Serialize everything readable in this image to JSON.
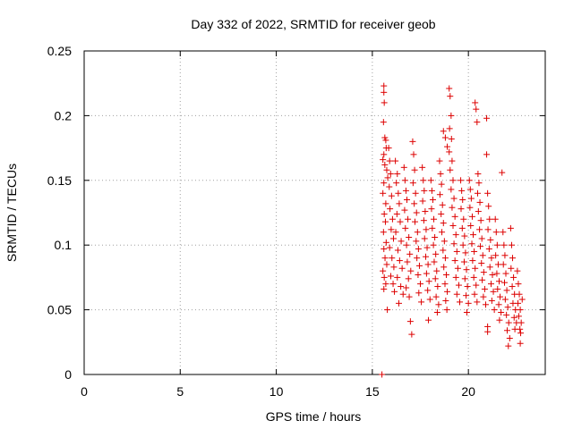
{
  "chart_data": {
    "type": "scatter",
    "title": "Day 332 of 2022, SRMTID for receiver geob",
    "xlabel": "GPS time / hours",
    "ylabel": "SRMTID / TECUs",
    "xlim": [
      0,
      24
    ],
    "ylim": [
      0,
      0.25
    ],
    "xticks": [
      0,
      5,
      10,
      15,
      20
    ],
    "yticks": [
      0,
      0.05,
      0.1,
      0.15,
      0.2,
      0.25
    ],
    "xtick_labels": [
      "0",
      "5",
      "10",
      "15",
      "20"
    ],
    "ytick_labels": [
      "0",
      "0.05",
      "0.1",
      "0.15",
      "0.2",
      "0.25"
    ],
    "grid": true,
    "marker": "+",
    "color": "#dd0000",
    "series": [
      {
        "name": "SRMTID",
        "points": [
          [
            15.5,
            0.0
          ],
          [
            15.6,
            0.223
          ],
          [
            15.6,
            0.218
          ],
          [
            15.62,
            0.21
          ],
          [
            15.58,
            0.195
          ],
          [
            15.65,
            0.183
          ],
          [
            15.7,
            0.181
          ],
          [
            15.72,
            0.175
          ],
          [
            15.6,
            0.17
          ],
          [
            15.55,
            0.166
          ],
          [
            15.65,
            0.162
          ],
          [
            15.75,
            0.158
          ],
          [
            15.8,
            0.152
          ],
          [
            15.6,
            0.148
          ],
          [
            15.55,
            0.14
          ],
          [
            15.7,
            0.132
          ],
          [
            15.62,
            0.124
          ],
          [
            15.68,
            0.118
          ],
          [
            15.58,
            0.11
          ],
          [
            15.72,
            0.102
          ],
          [
            15.6,
            0.097
          ],
          [
            15.66,
            0.09
          ],
          [
            15.75,
            0.085
          ],
          [
            15.55,
            0.08
          ],
          [
            15.62,
            0.075
          ],
          [
            15.7,
            0.07
          ],
          [
            15.6,
            0.066
          ],
          [
            15.78,
            0.05
          ],
          [
            15.85,
            0.175
          ],
          [
            15.9,
            0.165
          ],
          [
            15.95,
            0.155
          ],
          [
            15.88,
            0.145
          ],
          [
            16.0,
            0.138
          ],
          [
            15.92,
            0.128
          ],
          [
            16.05,
            0.12
          ],
          [
            15.98,
            0.112
          ],
          [
            16.1,
            0.105
          ],
          [
            15.9,
            0.098
          ],
          [
            16.02,
            0.09
          ],
          [
            16.12,
            0.083
          ],
          [
            15.96,
            0.076
          ],
          [
            16.08,
            0.07
          ],
          [
            16.15,
            0.064
          ],
          [
            16.2,
            0.165
          ],
          [
            16.3,
            0.155
          ],
          [
            16.25,
            0.148
          ],
          [
            16.35,
            0.14
          ],
          [
            16.4,
            0.132
          ],
          [
            16.28,
            0.124
          ],
          [
            16.45,
            0.118
          ],
          [
            16.22,
            0.11
          ],
          [
            16.5,
            0.103
          ],
          [
            16.33,
            0.096
          ],
          [
            16.42,
            0.088
          ],
          [
            16.55,
            0.082
          ],
          [
            16.3,
            0.075
          ],
          [
            16.48,
            0.068
          ],
          [
            16.6,
            0.062
          ],
          [
            16.38,
            0.055
          ],
          [
            16.65,
            0.16
          ],
          [
            16.7,
            0.15
          ],
          [
            16.75,
            0.142
          ],
          [
            16.8,
            0.135
          ],
          [
            16.68,
            0.127
          ],
          [
            16.85,
            0.12
          ],
          [
            16.72,
            0.113
          ],
          [
            16.9,
            0.106
          ],
          [
            16.78,
            0.1
          ],
          [
            16.95,
            0.093
          ],
          [
            16.82,
            0.087
          ],
          [
            17.0,
            0.08
          ],
          [
            16.88,
            0.074
          ],
          [
            16.76,
            0.067
          ],
          [
            16.92,
            0.06
          ],
          [
            16.98,
            0.041
          ],
          [
            17.05,
            0.031
          ],
          [
            17.1,
            0.18
          ],
          [
            17.15,
            0.17
          ],
          [
            17.2,
            0.158
          ],
          [
            17.12,
            0.148
          ],
          [
            17.25,
            0.14
          ],
          [
            17.18,
            0.132
          ],
          [
            17.3,
            0.125
          ],
          [
            17.22,
            0.118
          ],
          [
            17.35,
            0.11
          ],
          [
            17.28,
            0.103
          ],
          [
            17.4,
            0.097
          ],
          [
            17.32,
            0.09
          ],
          [
            17.45,
            0.084
          ],
          [
            17.38,
            0.077
          ],
          [
            17.5,
            0.07
          ],
          [
            17.42,
            0.063
          ],
          [
            17.55,
            0.056
          ],
          [
            17.6,
            0.16
          ],
          [
            17.65,
            0.15
          ],
          [
            17.7,
            0.142
          ],
          [
            17.62,
            0.134
          ],
          [
            17.75,
            0.126
          ],
          [
            17.68,
            0.119
          ],
          [
            17.8,
            0.112
          ],
          [
            17.72,
            0.105
          ],
          [
            17.85,
            0.098
          ],
          [
            17.78,
            0.091
          ],
          [
            17.9,
            0.085
          ],
          [
            17.82,
            0.078
          ],
          [
            17.95,
            0.072
          ],
          [
            17.88,
            0.065
          ],
          [
            18.0,
            0.058
          ],
          [
            17.92,
            0.042
          ],
          [
            18.05,
            0.15
          ],
          [
            18.1,
            0.142
          ],
          [
            18.15,
            0.135
          ],
          [
            18.08,
            0.128
          ],
          [
            18.2,
            0.12
          ],
          [
            18.12,
            0.113
          ],
          [
            18.25,
            0.106
          ],
          [
            18.18,
            0.1
          ],
          [
            18.3,
            0.093
          ],
          [
            18.22,
            0.087
          ],
          [
            18.35,
            0.08
          ],
          [
            18.28,
            0.074
          ],
          [
            18.4,
            0.068
          ],
          [
            18.32,
            0.06
          ],
          [
            18.45,
            0.054
          ],
          [
            18.38,
            0.048
          ],
          [
            18.5,
            0.165
          ],
          [
            18.55,
            0.155
          ],
          [
            18.6,
            0.147
          ],
          [
            18.52,
            0.139
          ],
          [
            18.65,
            0.131
          ],
          [
            18.58,
            0.124
          ],
          [
            18.7,
            0.117
          ],
          [
            18.62,
            0.11
          ],
          [
            18.75,
            0.103
          ],
          [
            18.68,
            0.096
          ],
          [
            18.8,
            0.09
          ],
          [
            18.72,
            0.083
          ],
          [
            18.85,
            0.077
          ],
          [
            18.78,
            0.07
          ],
          [
            18.9,
            0.064
          ],
          [
            18.82,
            0.057
          ],
          [
            18.88,
            0.05
          ],
          [
            18.7,
            0.188
          ],
          [
            18.8,
            0.183
          ],
          [
            18.9,
            0.176
          ],
          [
            19.0,
            0.221
          ],
          [
            19.05,
            0.215
          ],
          [
            19.1,
            0.2
          ],
          [
            19.02,
            0.19
          ],
          [
            19.12,
            0.182
          ],
          [
            19.0,
            0.172
          ],
          [
            19.15,
            0.165
          ],
          [
            19.05,
            0.158
          ],
          [
            19.2,
            0.15
          ],
          [
            19.1,
            0.143
          ],
          [
            19.25,
            0.136
          ],
          [
            19.15,
            0.129
          ],
          [
            19.3,
            0.122
          ],
          [
            19.2,
            0.115
          ],
          [
            19.35,
            0.108
          ],
          [
            19.25,
            0.101
          ],
          [
            19.4,
            0.095
          ],
          [
            19.3,
            0.088
          ],
          [
            19.45,
            0.082
          ],
          [
            19.35,
            0.075
          ],
          [
            19.5,
            0.069
          ],
          [
            19.4,
            0.062
          ],
          [
            19.55,
            0.056
          ],
          [
            19.6,
            0.15
          ],
          [
            19.65,
            0.142
          ],
          [
            19.7,
            0.135
          ],
          [
            19.62,
            0.128
          ],
          [
            19.75,
            0.12
          ],
          [
            19.68,
            0.113
          ],
          [
            19.8,
            0.107
          ],
          [
            19.72,
            0.1
          ],
          [
            19.85,
            0.094
          ],
          [
            19.78,
            0.087
          ],
          [
            19.9,
            0.081
          ],
          [
            19.82,
            0.074
          ],
          [
            19.95,
            0.068
          ],
          [
            19.88,
            0.061
          ],
          [
            20.0,
            0.055
          ],
          [
            19.92,
            0.048
          ],
          [
            20.05,
            0.15
          ],
          [
            20.1,
            0.143
          ],
          [
            20.15,
            0.136
          ],
          [
            20.08,
            0.129
          ],
          [
            20.2,
            0.122
          ],
          [
            20.12,
            0.115
          ],
          [
            20.25,
            0.108
          ],
          [
            20.18,
            0.101
          ],
          [
            20.3,
            0.095
          ],
          [
            20.22,
            0.088
          ],
          [
            20.35,
            0.082
          ],
          [
            20.28,
            0.075
          ],
          [
            20.4,
            0.069
          ],
          [
            20.32,
            0.062
          ],
          [
            20.45,
            0.056
          ],
          [
            20.35,
            0.21
          ],
          [
            20.4,
            0.205
          ],
          [
            20.45,
            0.195
          ],
          [
            20.5,
            0.155
          ],
          [
            20.55,
            0.148
          ],
          [
            20.48,
            0.14
          ],
          [
            20.6,
            0.133
          ],
          [
            20.52,
            0.126
          ],
          [
            20.65,
            0.119
          ],
          [
            20.58,
            0.112
          ],
          [
            20.7,
            0.105
          ],
          [
            20.62,
            0.099
          ],
          [
            20.75,
            0.092
          ],
          [
            20.68,
            0.086
          ],
          [
            20.8,
            0.079
          ],
          [
            20.72,
            0.073
          ],
          [
            20.85,
            0.066
          ],
          [
            20.78,
            0.06
          ],
          [
            20.9,
            0.054
          ],
          [
            20.95,
            0.198
          ],
          [
            20.95,
            0.17
          ],
          [
            21.0,
            0.14
          ],
          [
            21.05,
            0.13
          ],
          [
            21.1,
            0.12
          ],
          [
            21.02,
            0.112
          ],
          [
            21.15,
            0.104
          ],
          [
            21.08,
            0.097
          ],
          [
            21.2,
            0.09
          ],
          [
            21.12,
            0.083
          ],
          [
            21.25,
            0.077
          ],
          [
            21.18,
            0.07
          ],
          [
            21.3,
            0.064
          ],
          [
            21.22,
            0.057
          ],
          [
            21.35,
            0.05
          ],
          [
            21.0,
            0.037
          ],
          [
            21.0,
            0.033
          ],
          [
            21.4,
            0.12
          ],
          [
            21.45,
            0.11
          ],
          [
            21.5,
            0.1
          ],
          [
            21.42,
            0.092
          ],
          [
            21.55,
            0.085
          ],
          [
            21.48,
            0.078
          ],
          [
            21.6,
            0.072
          ],
          [
            21.52,
            0.066
          ],
          [
            21.65,
            0.06
          ],
          [
            21.58,
            0.054
          ],
          [
            21.7,
            0.048
          ],
          [
            21.62,
            0.042
          ],
          [
            21.75,
            0.156
          ],
          [
            21.8,
            0.11
          ],
          [
            21.85,
            0.1
          ],
          [
            21.9,
            0.092
          ],
          [
            21.82,
            0.085
          ],
          [
            21.95,
            0.078
          ],
          [
            21.88,
            0.071
          ],
          [
            22.0,
            0.065
          ],
          [
            21.92,
            0.058
          ],
          [
            22.05,
            0.052
          ],
          [
            21.98,
            0.046
          ],
          [
            22.1,
            0.04
          ],
          [
            22.02,
            0.034
          ],
          [
            22.15,
            0.028
          ],
          [
            22.08,
            0.022
          ],
          [
            22.2,
            0.113
          ],
          [
            22.25,
            0.1
          ],
          [
            22.3,
            0.09
          ],
          [
            22.22,
            0.082
          ],
          [
            22.35,
            0.075
          ],
          [
            22.28,
            0.068
          ],
          [
            22.4,
            0.062
          ],
          [
            22.32,
            0.055
          ],
          [
            22.45,
            0.05
          ],
          [
            22.38,
            0.044
          ],
          [
            22.5,
            0.04
          ],
          [
            22.42,
            0.035
          ],
          [
            22.55,
            0.08
          ],
          [
            22.6,
            0.07
          ],
          [
            22.65,
            0.062
          ],
          [
            22.58,
            0.055
          ],
          [
            22.7,
            0.05
          ],
          [
            22.62,
            0.045
          ],
          [
            22.75,
            0.04
          ],
          [
            22.68,
            0.035
          ],
          [
            22.8,
            0.058
          ],
          [
            22.72,
            0.032
          ],
          [
            22.7,
            0.024
          ]
        ]
      }
    ]
  }
}
